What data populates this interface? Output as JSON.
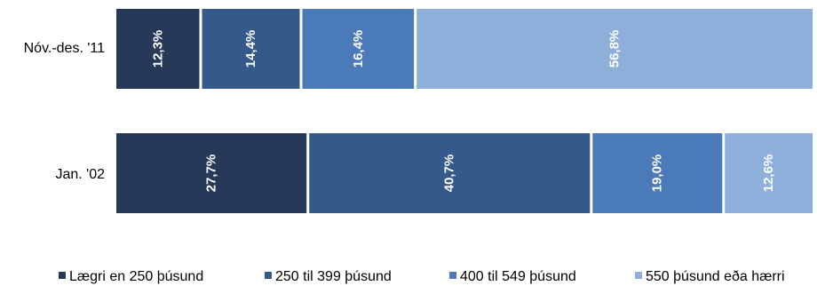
{
  "chart_data": {
    "type": "bar",
    "orientation": "horizontal",
    "stacked": true,
    "categories": [
      "Nóv.-des. '11",
      "Jan. '02"
    ],
    "series": [
      {
        "name": "Lægri en 250 þúsund",
        "values": [
          12.3,
          27.7
        ],
        "labels": [
          "12,3%",
          "27,7%"
        ],
        "color": "#263959"
      },
      {
        "name": "250 til 399 þúsund",
        "values": [
          14.4,
          40.7
        ],
        "labels": [
          "14,4%",
          "40,7%"
        ],
        "color": "#35598a"
      },
      {
        "name": "400 til 549 þúsund",
        "values": [
          16.4,
          19.0
        ],
        "labels": [
          "16,4%",
          "19,0%"
        ],
        "color": "#4a7ab8"
      },
      {
        "name": "550 þúsund eða hærri",
        "values": [
          56.8,
          12.6
        ],
        "labels": [
          "56,8%",
          "12,6%"
        ],
        "color": "#8dafd9"
      }
    ],
    "xlim": [
      0,
      100
    ],
    "grid": false,
    "legend": "bottom"
  }
}
